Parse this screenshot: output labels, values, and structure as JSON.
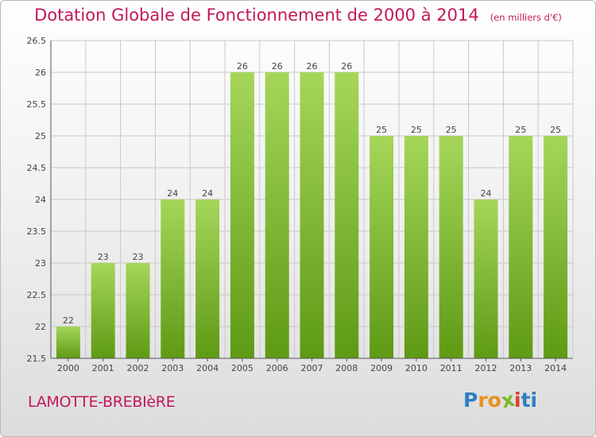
{
  "header": {
    "title": "Dotation Globale de Fonctionnement de 2000 à 2014",
    "subtitle": "(en milliers d'€)"
  },
  "footer": {
    "commune": "LAMOTTE-BREBIèRE",
    "logo_letters": [
      "P",
      "r",
      "o",
      "x",
      "i",
      "t",
      "i"
    ]
  },
  "colors": {
    "title": "#c2185b",
    "bar_light": "#a5d65a",
    "bar_dark": "#5e9a14",
    "grid": "#c8c8c8",
    "axis": "#555555"
  },
  "chart_data": {
    "type": "bar",
    "categories": [
      "2000",
      "2001",
      "2002",
      "2003",
      "2004",
      "2005",
      "2006",
      "2007",
      "2008",
      "2009",
      "2010",
      "2011",
      "2012",
      "2013",
      "2014"
    ],
    "values": [
      22,
      23,
      23,
      24,
      24,
      26,
      26,
      26,
      26,
      25,
      25,
      25,
      24,
      25,
      25
    ],
    "data_labels": [
      "22",
      "23",
      "23",
      "24",
      "24",
      "26",
      "26",
      "26",
      "26",
      "25",
      "25",
      "25",
      "24",
      "25",
      "25"
    ],
    "yticks": [
      "21.5",
      "22",
      "22.5",
      "23",
      "23.5",
      "24",
      "24.5",
      "25",
      "25.5",
      "26",
      "26.5"
    ],
    "ylim": [
      21.5,
      26.5
    ],
    "grid": true,
    "legend": "none"
  }
}
